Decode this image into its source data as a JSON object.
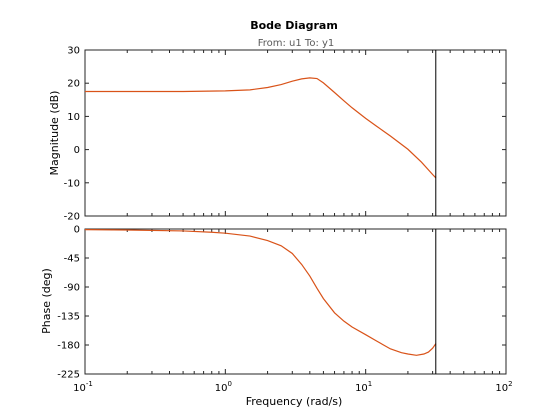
{
  "figure": {
    "title": "Bode Diagram",
    "subtitle": "From: u1  To: y1",
    "xlabel": "Frequency  (rad/s)",
    "colors": {
      "curve": "#d95319",
      "cursor": "#000000",
      "axes": "#262626"
    }
  },
  "chart_data": [
    {
      "type": "line",
      "panel": "magnitude",
      "ylabel": "Magnitude (dB)",
      "xscale": "log",
      "xlim": [
        0.1,
        100
      ],
      "ylim": [
        -20,
        30
      ],
      "yticks": [
        -20,
        -10,
        0,
        10,
        20,
        30
      ],
      "ytick_labels": [
        "-20",
        "-10",
        "0",
        "10",
        "20",
        "30"
      ],
      "grid": false,
      "cursor_x": 31.6,
      "series": [
        {
          "x": [
            0.1,
            0.2,
            0.5,
            1,
            1.5,
            2,
            2.5,
            3,
            3.5,
            4,
            4.5,
            5,
            6,
            7,
            8,
            10,
            12,
            15,
            20,
            25,
            30,
            31.6
          ],
          "y": [
            17.5,
            17.5,
            17.5,
            17.7,
            18.0,
            18.7,
            19.6,
            20.6,
            21.3,
            21.6,
            21.4,
            20.1,
            17.2,
            14.7,
            12.6,
            9.4,
            7.0,
            4.1,
            0.1,
            -3.8,
            -7.5,
            -8.5
          ]
        }
      ]
    },
    {
      "type": "line",
      "panel": "phase",
      "ylabel": "Phase (deg)",
      "xscale": "log",
      "xlim": [
        0.1,
        100
      ],
      "ylim": [
        -225,
        0
      ],
      "yticks": [
        -225,
        -180,
        -135,
        -90,
        -45,
        0
      ],
      "ytick_labels": [
        "-225",
        "-180",
        "-135",
        "-90",
        "-45",
        "0"
      ],
      "xticks": [
        0.1,
        1,
        10,
        100
      ],
      "xtick_labels": [
        {
          "base": "10",
          "exp": "-1"
        },
        {
          "base": "10",
          "exp": "0"
        },
        {
          "base": "10",
          "exp": "1"
        },
        {
          "base": "10",
          "exp": "2"
        }
      ],
      "grid": false,
      "cursor_x": 31.6,
      "series": [
        {
          "x": [
            0.1,
            0.2,
            0.5,
            0.8,
            1,
            1.5,
            2,
            2.5,
            3,
            3.5,
            4,
            4.5,
            5,
            6,
            7,
            8,
            10,
            12,
            15,
            18,
            20,
            23,
            26,
            28,
            30,
            31.6
          ],
          "y": [
            -1,
            -1.5,
            -3,
            -5,
            -6.5,
            -11,
            -18,
            -26,
            -38,
            -55,
            -73,
            -92,
            -108,
            -130,
            -143,
            -152,
            -164,
            -174,
            -186,
            -192,
            -194,
            -196,
            -194,
            -191,
            -185,
            -178
          ]
        }
      ]
    }
  ]
}
